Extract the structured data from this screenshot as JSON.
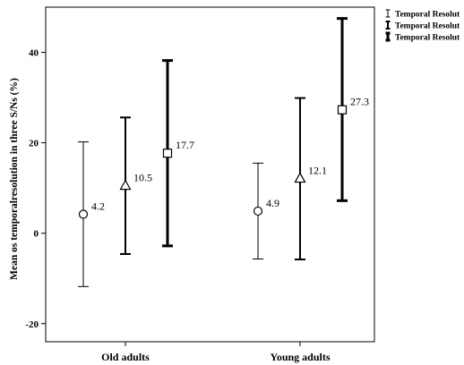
{
  "chart_data": {
    "type": "errorbar",
    "ylabel": "Mean os temporalresolution in three S/Ns (%)",
    "xlabel": "",
    "ylim": [
      -24,
      50
    ],
    "yticks": [
      -20,
      0,
      20,
      40
    ],
    "yticks_labels": [
      "-20",
      "0",
      "20",
      "40"
    ],
    "grid": false,
    "legend_position": "top-right",
    "categories": [
      "Old adults",
      "Young adults"
    ],
    "series": [
      {
        "name": "Temporal Resolut",
        "marker": "circle",
        "stroke_width": 1,
        "values": [
          4.2,
          4.9
        ],
        "lower": [
          -11.8,
          -5.7
        ],
        "upper": [
          20.2,
          15.5
        ],
        "labels": [
          "4.2",
          "4.9"
        ]
      },
      {
        "name": "Temporal Resolut",
        "marker": "triangle",
        "stroke_width": 2,
        "values": [
          10.5,
          12.1
        ],
        "lower": [
          -4.6,
          -5.8
        ],
        "upper": [
          25.6,
          29.9
        ],
        "labels": [
          "10.5",
          "12.1"
        ]
      },
      {
        "name": "Temporal Resolut",
        "marker": "square",
        "stroke_width": 3,
        "values": [
          17.7,
          27.3
        ],
        "lower": [
          -2.8,
          7.2
        ],
        "upper": [
          38.2,
          47.5
        ],
        "labels": [
          "17.7",
          "27.3"
        ]
      }
    ]
  }
}
